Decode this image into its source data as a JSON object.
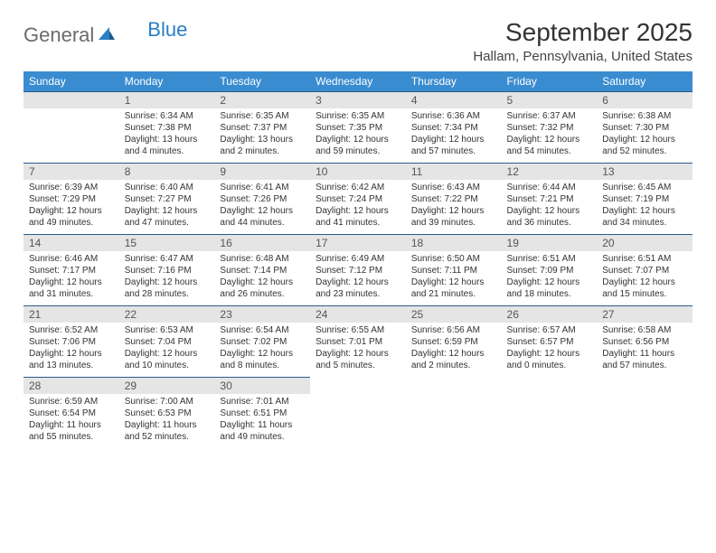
{
  "logo": {
    "text1": "General",
    "text2": "Blue"
  },
  "title": "September 2025",
  "location": "Hallam, Pennsylvania, United States",
  "colors": {
    "header_bg": "#3a8cd0",
    "header_text": "#ffffff",
    "daynum_bg": "#e5e5e5",
    "daynum_text": "#555555",
    "row_border": "#2a5b8a",
    "body_text": "#333333",
    "logo_gray": "#6b6b6b",
    "logo_blue": "#2a7ec5"
  },
  "fonts": {
    "title_size": 28,
    "location_size": 15,
    "header_cell_size": 12,
    "daynum_size": 12,
    "body_size": 10
  },
  "day_headers": [
    "Sunday",
    "Monday",
    "Tuesday",
    "Wednesday",
    "Thursday",
    "Friday",
    "Saturday"
  ],
  "weeks": [
    [
      {
        "empty": true
      },
      {
        "day": "1",
        "sunrise": "Sunrise: 6:34 AM",
        "sunset": "Sunset: 7:38 PM",
        "daylight1": "Daylight: 13 hours",
        "daylight2": "and 4 minutes."
      },
      {
        "day": "2",
        "sunrise": "Sunrise: 6:35 AM",
        "sunset": "Sunset: 7:37 PM",
        "daylight1": "Daylight: 13 hours",
        "daylight2": "and 2 minutes."
      },
      {
        "day": "3",
        "sunrise": "Sunrise: 6:35 AM",
        "sunset": "Sunset: 7:35 PM",
        "daylight1": "Daylight: 12 hours",
        "daylight2": "and 59 minutes."
      },
      {
        "day": "4",
        "sunrise": "Sunrise: 6:36 AM",
        "sunset": "Sunset: 7:34 PM",
        "daylight1": "Daylight: 12 hours",
        "daylight2": "and 57 minutes."
      },
      {
        "day": "5",
        "sunrise": "Sunrise: 6:37 AM",
        "sunset": "Sunset: 7:32 PM",
        "daylight1": "Daylight: 12 hours",
        "daylight2": "and 54 minutes."
      },
      {
        "day": "6",
        "sunrise": "Sunrise: 6:38 AM",
        "sunset": "Sunset: 7:30 PM",
        "daylight1": "Daylight: 12 hours",
        "daylight2": "and 52 minutes."
      }
    ],
    [
      {
        "day": "7",
        "sunrise": "Sunrise: 6:39 AM",
        "sunset": "Sunset: 7:29 PM",
        "daylight1": "Daylight: 12 hours",
        "daylight2": "and 49 minutes."
      },
      {
        "day": "8",
        "sunrise": "Sunrise: 6:40 AM",
        "sunset": "Sunset: 7:27 PM",
        "daylight1": "Daylight: 12 hours",
        "daylight2": "and 47 minutes."
      },
      {
        "day": "9",
        "sunrise": "Sunrise: 6:41 AM",
        "sunset": "Sunset: 7:26 PM",
        "daylight1": "Daylight: 12 hours",
        "daylight2": "and 44 minutes."
      },
      {
        "day": "10",
        "sunrise": "Sunrise: 6:42 AM",
        "sunset": "Sunset: 7:24 PM",
        "daylight1": "Daylight: 12 hours",
        "daylight2": "and 41 minutes."
      },
      {
        "day": "11",
        "sunrise": "Sunrise: 6:43 AM",
        "sunset": "Sunset: 7:22 PM",
        "daylight1": "Daylight: 12 hours",
        "daylight2": "and 39 minutes."
      },
      {
        "day": "12",
        "sunrise": "Sunrise: 6:44 AM",
        "sunset": "Sunset: 7:21 PM",
        "daylight1": "Daylight: 12 hours",
        "daylight2": "and 36 minutes."
      },
      {
        "day": "13",
        "sunrise": "Sunrise: 6:45 AM",
        "sunset": "Sunset: 7:19 PM",
        "daylight1": "Daylight: 12 hours",
        "daylight2": "and 34 minutes."
      }
    ],
    [
      {
        "day": "14",
        "sunrise": "Sunrise: 6:46 AM",
        "sunset": "Sunset: 7:17 PM",
        "daylight1": "Daylight: 12 hours",
        "daylight2": "and 31 minutes."
      },
      {
        "day": "15",
        "sunrise": "Sunrise: 6:47 AM",
        "sunset": "Sunset: 7:16 PM",
        "daylight1": "Daylight: 12 hours",
        "daylight2": "and 28 minutes."
      },
      {
        "day": "16",
        "sunrise": "Sunrise: 6:48 AM",
        "sunset": "Sunset: 7:14 PM",
        "daylight1": "Daylight: 12 hours",
        "daylight2": "and 26 minutes."
      },
      {
        "day": "17",
        "sunrise": "Sunrise: 6:49 AM",
        "sunset": "Sunset: 7:12 PM",
        "daylight1": "Daylight: 12 hours",
        "daylight2": "and 23 minutes."
      },
      {
        "day": "18",
        "sunrise": "Sunrise: 6:50 AM",
        "sunset": "Sunset: 7:11 PM",
        "daylight1": "Daylight: 12 hours",
        "daylight2": "and 21 minutes."
      },
      {
        "day": "19",
        "sunrise": "Sunrise: 6:51 AM",
        "sunset": "Sunset: 7:09 PM",
        "daylight1": "Daylight: 12 hours",
        "daylight2": "and 18 minutes."
      },
      {
        "day": "20",
        "sunrise": "Sunrise: 6:51 AM",
        "sunset": "Sunset: 7:07 PM",
        "daylight1": "Daylight: 12 hours",
        "daylight2": "and 15 minutes."
      }
    ],
    [
      {
        "day": "21",
        "sunrise": "Sunrise: 6:52 AM",
        "sunset": "Sunset: 7:06 PM",
        "daylight1": "Daylight: 12 hours",
        "daylight2": "and 13 minutes."
      },
      {
        "day": "22",
        "sunrise": "Sunrise: 6:53 AM",
        "sunset": "Sunset: 7:04 PM",
        "daylight1": "Daylight: 12 hours",
        "daylight2": "and 10 minutes."
      },
      {
        "day": "23",
        "sunrise": "Sunrise: 6:54 AM",
        "sunset": "Sunset: 7:02 PM",
        "daylight1": "Daylight: 12 hours",
        "daylight2": "and 8 minutes."
      },
      {
        "day": "24",
        "sunrise": "Sunrise: 6:55 AM",
        "sunset": "Sunset: 7:01 PM",
        "daylight1": "Daylight: 12 hours",
        "daylight2": "and 5 minutes."
      },
      {
        "day": "25",
        "sunrise": "Sunrise: 6:56 AM",
        "sunset": "Sunset: 6:59 PM",
        "daylight1": "Daylight: 12 hours",
        "daylight2": "and 2 minutes."
      },
      {
        "day": "26",
        "sunrise": "Sunrise: 6:57 AM",
        "sunset": "Sunset: 6:57 PM",
        "daylight1": "Daylight: 12 hours",
        "daylight2": "and 0 minutes."
      },
      {
        "day": "27",
        "sunrise": "Sunrise: 6:58 AM",
        "sunset": "Sunset: 6:56 PM",
        "daylight1": "Daylight: 11 hours",
        "daylight2": "and 57 minutes."
      }
    ],
    [
      {
        "day": "28",
        "sunrise": "Sunrise: 6:59 AM",
        "sunset": "Sunset: 6:54 PM",
        "daylight1": "Daylight: 11 hours",
        "daylight2": "and 55 minutes."
      },
      {
        "day": "29",
        "sunrise": "Sunrise: 7:00 AM",
        "sunset": "Sunset: 6:53 PM",
        "daylight1": "Daylight: 11 hours",
        "daylight2": "and 52 minutes."
      },
      {
        "day": "30",
        "sunrise": "Sunrise: 7:01 AM",
        "sunset": "Sunset: 6:51 PM",
        "daylight1": "Daylight: 11 hours",
        "daylight2": "and 49 minutes."
      },
      {
        "trailing": true
      },
      {
        "trailing": true
      },
      {
        "trailing": true
      },
      {
        "trailing": true
      }
    ]
  ]
}
